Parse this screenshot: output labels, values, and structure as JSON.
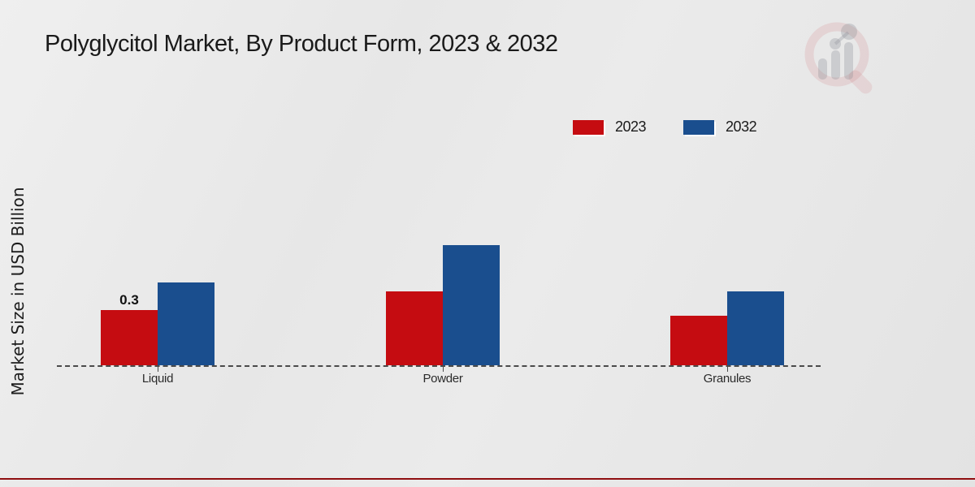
{
  "title": "Polyglycitol Market, By Product Form, 2023 & 2032",
  "ylabel": "Market Size in USD Billion",
  "legend": {
    "position": "top-right",
    "items": [
      {
        "label": "2023",
        "color": "#c50c11"
      },
      {
        "label": "2032",
        "color": "#1a4e8e"
      }
    ]
  },
  "icons": {
    "watermark": "bar-chart-magnifier-logo"
  },
  "chart_data": {
    "type": "bar",
    "title": "Polyglycitol Market, By Product Form, 2023 & 2032",
    "xlabel": "",
    "ylabel": "Market Size in USD Billion",
    "categories": [
      "Liquid",
      "Powder",
      "Granules"
    ],
    "series": [
      {
        "name": "2023",
        "color": "#c50c11",
        "values": [
          0.3,
          0.4,
          0.27
        ]
      },
      {
        "name": "2032",
        "color": "#1a4e8e",
        "values": [
          0.45,
          0.65,
          0.4
        ]
      }
    ],
    "data_labels": [
      {
        "series": "2023",
        "category": "Liquid",
        "text": "0.3"
      }
    ],
    "ylim": [
      0,
      0.75
    ],
    "grid": false,
    "axis_style": "dashed-baseline-only",
    "legend_position": "top-right"
  },
  "footer": {
    "band_color": "#c00000"
  }
}
